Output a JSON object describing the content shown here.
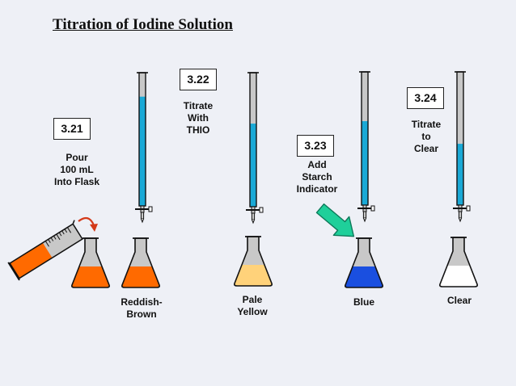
{
  "title": "Titration of Iodine Solution",
  "steps": [
    {
      "id": "3.21",
      "instruction": "Pour\n100 mL\nInto Flask"
    },
    {
      "id": "3.22",
      "instruction": "Titrate\nWith\nTHIO"
    },
    {
      "id": "3.23",
      "instruction": "Add\nStarch\nIndicator"
    },
    {
      "id": "3.24",
      "instruction": "Titrate\nto\nClear"
    }
  ],
  "flask_labels": [
    "Reddish-\nBrown",
    "Pale\nYellow",
    "Blue",
    "Clear"
  ],
  "burette_fill_fractions": [
    0.82,
    0.62,
    0.63,
    0.46
  ],
  "colors": {
    "background": "#eef0f6",
    "reddish_brown": "#ff6a00",
    "pale_yellow": "#ffd27a",
    "blue": "#1a4fe0",
    "clear": "#ffffff",
    "titrant": "#1aa9d6",
    "glass": "#c8c8c8",
    "pour_arrow": "#d43a1a",
    "indicator_arrow": "#1fcf9a"
  },
  "icons": [
    "graduated-cylinder-icon",
    "flask-icon",
    "burette-icon",
    "curved-arrow-icon",
    "block-arrow-icon"
  ]
}
